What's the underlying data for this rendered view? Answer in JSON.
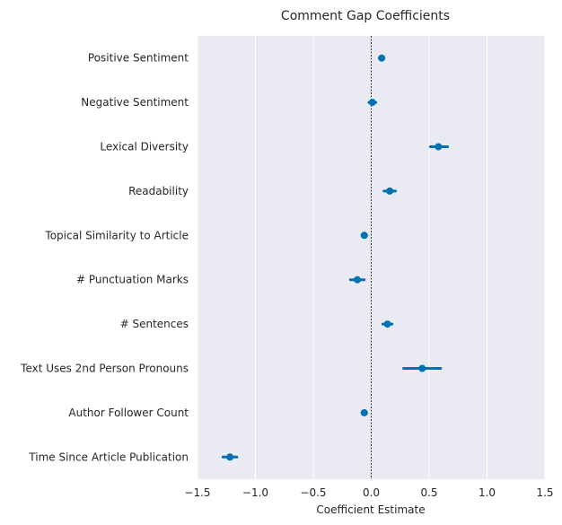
{
  "chart_data": {
    "type": "scatter",
    "title": "Comment Gap Coefficients",
    "xlabel": "Coefficient Estimate",
    "ylabel": "",
    "xlim": [
      -1.5,
      1.5
    ],
    "xticks": [
      -1.5,
      -1.0,
      -0.5,
      0.0,
      0.5,
      1.0,
      1.5
    ],
    "xtick_labels": [
      "−1.5",
      "−1.0",
      "−0.5",
      "0.0",
      "0.5",
      "1.0",
      "1.5"
    ],
    "grid": true,
    "reference_line": 0.0,
    "categories": [
      "Positive Sentiment",
      "Negative Sentiment",
      "Lexical Diversity",
      "Readability",
      "Topical Similarity to Article",
      "# Punctuation Marks",
      "# Sentences",
      "Text Uses 2nd Person Pronouns",
      "Author Follower Count",
      "Time Since Article Publication"
    ],
    "series": [
      {
        "name": "Coefficient",
        "color": "#0072b2",
        "values": [
          0.09,
          0.01,
          0.58,
          0.16,
          -0.06,
          -0.12,
          0.14,
          0.44,
          -0.06,
          -1.22
        ],
        "ci_low": [
          0.07,
          -0.02,
          0.51,
          0.11,
          -0.08,
          -0.18,
          0.1,
          0.28,
          -0.08,
          -1.28
        ],
        "ci_high": [
          0.11,
          0.04,
          0.66,
          0.21,
          -0.04,
          -0.06,
          0.18,
          0.6,
          -0.04,
          -1.16
        ]
      }
    ]
  }
}
